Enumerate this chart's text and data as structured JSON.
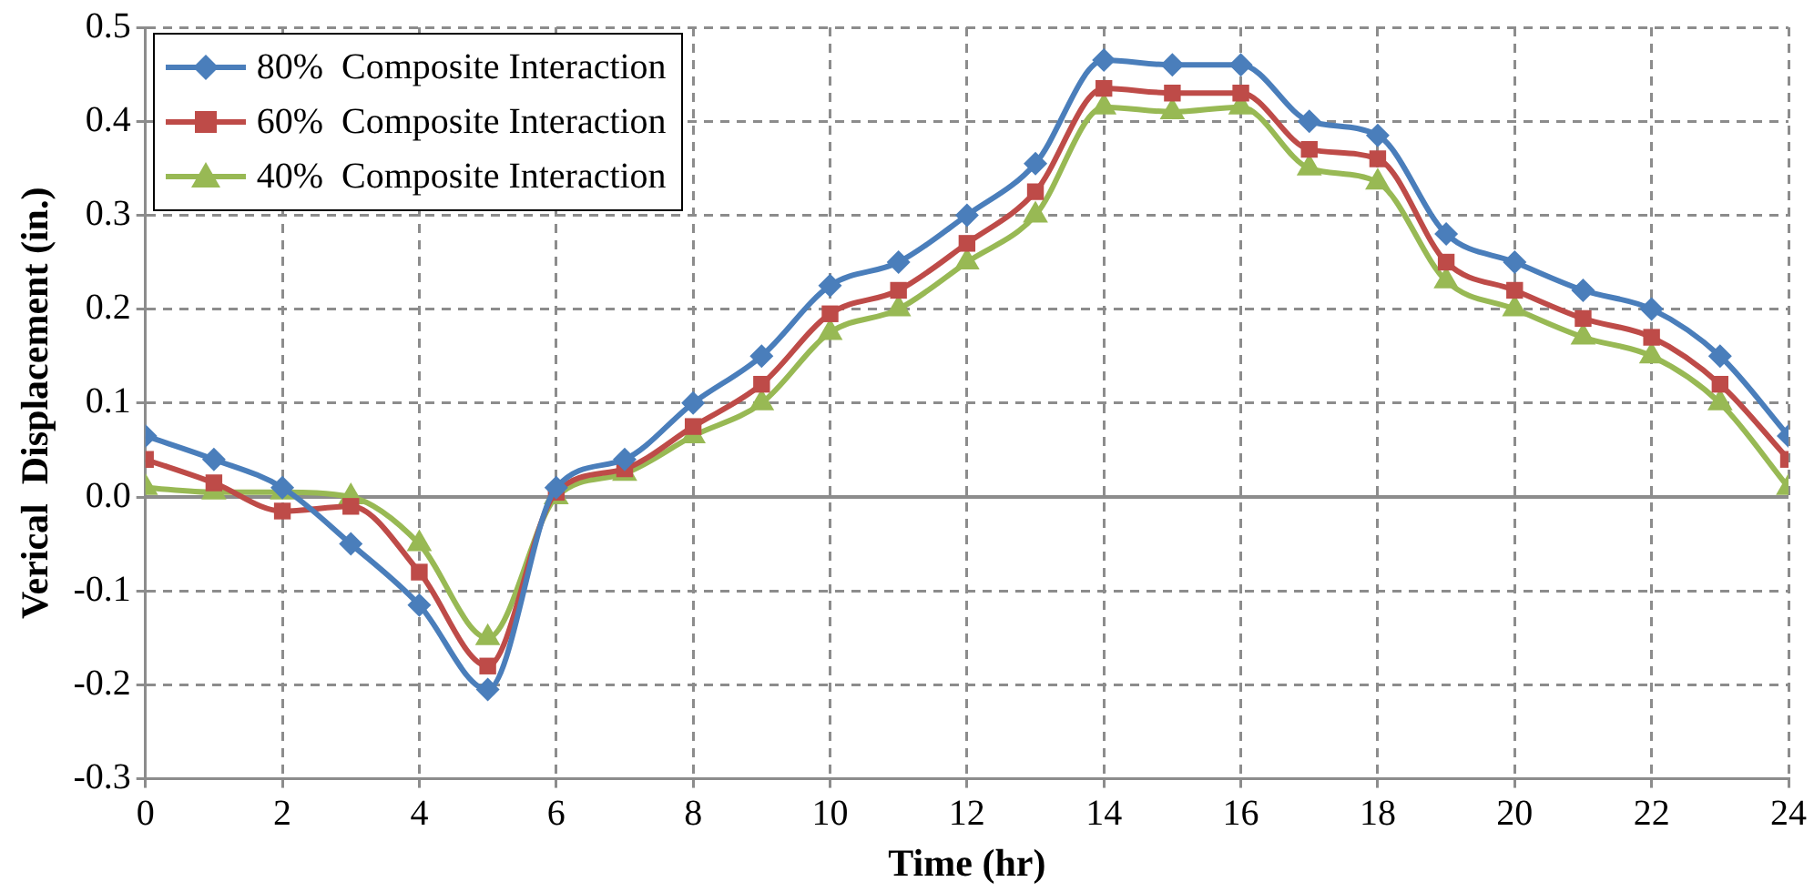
{
  "chart_data": {
    "type": "line",
    "xlabel": "Time (hr)",
    "ylabel": "Verical  Displacement (in.)",
    "x": [
      0,
      1,
      2,
      3,
      4,
      5,
      6,
      7,
      8,
      9,
      10,
      11,
      12,
      13,
      14,
      15,
      16,
      17,
      18,
      19,
      20,
      21,
      22,
      23,
      24
    ],
    "series": [
      {
        "name": "80%  Composite Interaction",
        "color": "#4a7ebb",
        "marker": "diamond",
        "values": [
          0.065,
          0.04,
          0.01,
          -0.05,
          -0.115,
          -0.205,
          0.01,
          0.04,
          0.1,
          0.15,
          0.225,
          0.25,
          0.3,
          0.355,
          0.465,
          0.46,
          0.46,
          0.4,
          0.385,
          0.28,
          0.25,
          0.22,
          0.2,
          0.15,
          0.065
        ]
      },
      {
        "name": "60%  Composite Interaction",
        "color": "#be4b48",
        "marker": "square",
        "values": [
          0.04,
          0.015,
          -0.015,
          -0.01,
          -0.08,
          -0.18,
          0.005,
          0.03,
          0.075,
          0.12,
          0.195,
          0.22,
          0.27,
          0.325,
          0.435,
          0.43,
          0.43,
          0.37,
          0.36,
          0.25,
          0.22,
          0.19,
          0.17,
          0.12,
          0.04
        ]
      },
      {
        "name": "40%  Composite Interaction",
        "color": "#98b954",
        "marker": "triangle",
        "values": [
          0.01,
          0.005,
          0.005,
          0.0,
          -0.05,
          -0.15,
          0.0,
          0.025,
          0.065,
          0.1,
          0.175,
          0.2,
          0.25,
          0.3,
          0.415,
          0.41,
          0.415,
          0.35,
          0.335,
          0.23,
          0.2,
          0.17,
          0.15,
          0.1,
          0.01
        ]
      }
    ],
    "xlim": [
      0,
      24
    ],
    "xticks": [
      0,
      2,
      4,
      6,
      8,
      10,
      12,
      14,
      16,
      18,
      20,
      22,
      24
    ],
    "ylim": [
      -0.3,
      0.5
    ],
    "yticks": [
      {
        "value": -0.3,
        "label": "-0.3"
      },
      {
        "value": -0.2,
        "label": "-0.2"
      },
      {
        "value": -0.1,
        "label": "-0.1"
      },
      {
        "value": 0,
        "label": "0.0"
      },
      {
        "value": 0.1,
        "label": "0.1"
      },
      {
        "value": 0.2,
        "label": "0.2"
      },
      {
        "value": 0.3,
        "label": "0.3"
      },
      {
        "value": 0.4,
        "label": "0.4"
      },
      {
        "value": 0.5,
        "label": "0.5"
      }
    ],
    "grid": true,
    "legend": "top left",
    "line_style": "solid"
  }
}
